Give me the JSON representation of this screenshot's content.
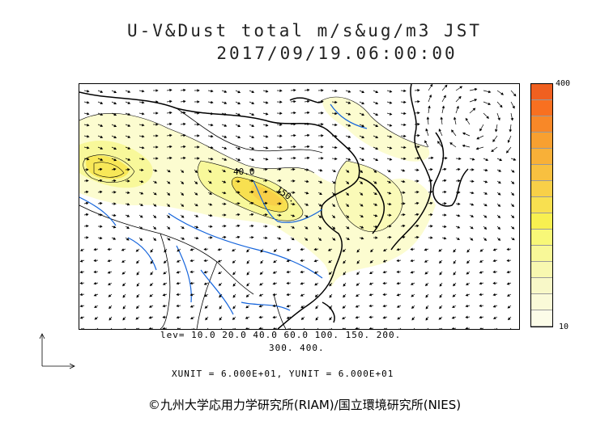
{
  "title": {
    "line1": "U-V&Dust total m/s&ug/m3 JST",
    "line2": "2017/09/19.06:00:00"
  },
  "map": {
    "contour_labels": [
      "40.0",
      "150."
    ]
  },
  "colorbar": {
    "max_label": "400",
    "min_label": "10",
    "colors": [
      "#f06020",
      "#f87020",
      "#f88828",
      "#f8a030",
      "#f8b038",
      "#f8c040",
      "#f8d048",
      "#f8e050",
      "#f8f050",
      "#f8f878",
      "#f8f898",
      "#f8f8b0",
      "#f8f8c8",
      "#fafad8",
      "#fcfce8"
    ]
  },
  "legend": {
    "levels": "lev= 10.0 20.0 40.0 60.0 100. 150. 200.",
    "levels2": "300. 400.",
    "units": "XUNIT = 6.000E+01, YUNIT = 6.000E+01"
  },
  "copyright": "©九州大学応用力学研究所(RIAM)/国立環境研究所(NIES)"
}
